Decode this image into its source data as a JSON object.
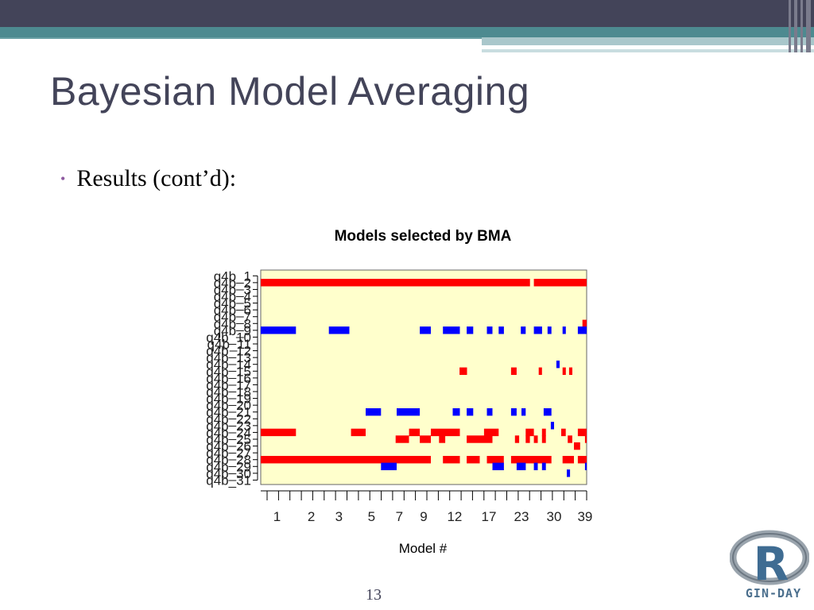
{
  "slide": {
    "title": "Bayesian Model Averaging",
    "bullet": "Results (cont’d):",
    "page_number": "13",
    "logo_text": "GIN-DAY",
    "accent_colors": {
      "header": "#434459",
      "teal": "#4d8a90",
      "bullet": "#8e5ba0"
    }
  },
  "chart_data": {
    "type": "heatmap",
    "title": "Models selected by BMA",
    "xlabel": "Model #",
    "ylabel": "",
    "background_color": "#ffffcc",
    "positive_color": "#ff0000",
    "negative_color": "#0000ff",
    "x_tick_labels": [
      "1",
      "2",
      "3",
      "5",
      "7",
      "9",
      "12",
      "17",
      "23",
      "30",
      "39"
    ],
    "y_labels": [
      "q4b_1",
      "q4b_2",
      "q4b_3",
      "q4b_4",
      "q4b_5",
      "q4b_6",
      "q4b_7",
      "q4b_8",
      "q4b_9",
      "q4b_10",
      "q4b_11",
      "q4b_12",
      "q4b_13",
      "q4b_14",
      "q4b_15",
      "q4b_16",
      "q4b_17",
      "q4b_18",
      "q4b_19",
      "q4b_20",
      "q4b_21",
      "q4b_22",
      "q4b_23",
      "q4b_24",
      "q4b_25",
      "q4b_26",
      "q4b_27",
      "q4b_28",
      "q4b_29",
      "q4b_30",
      "q4b_31"
    ],
    "cells": [
      {
        "variable": "q4b_2",
        "sign": "positive",
        "x_from": 0,
        "x_to": 0.826
      },
      {
        "variable": "q4b_2",
        "sign": "positive",
        "x_from": 0.838,
        "x_to": 1.0
      },
      {
        "variable": "q4b_8",
        "sign": "positive",
        "x_from": 0.987,
        "x_to": 1.0
      },
      {
        "variable": "q4b_9",
        "sign": "negative",
        "x_from": 0,
        "x_to": 0.108
      },
      {
        "variable": "q4b_9",
        "sign": "negative",
        "x_from": 0.209,
        "x_to": 0.272
      },
      {
        "variable": "q4b_9",
        "sign": "negative",
        "x_from": 0.488,
        "x_to": 0.522
      },
      {
        "variable": "q4b_9",
        "sign": "negative",
        "x_from": 0.559,
        "x_to": 0.611
      },
      {
        "variable": "q4b_9",
        "sign": "negative",
        "x_from": 0.632,
        "x_to": 0.652
      },
      {
        "variable": "q4b_9",
        "sign": "negative",
        "x_from": 0.694,
        "x_to": 0.711
      },
      {
        "variable": "q4b_9",
        "sign": "negative",
        "x_from": 0.73,
        "x_to": 0.746
      },
      {
        "variable": "q4b_9",
        "sign": "negative",
        "x_from": 0.798,
        "x_to": 0.813
      },
      {
        "variable": "q4b_9",
        "sign": "negative",
        "x_from": 0.838,
        "x_to": 0.863
      },
      {
        "variable": "q4b_9",
        "sign": "negative",
        "x_from": 0.88,
        "x_to": 0.892
      },
      {
        "variable": "q4b_9",
        "sign": "negative",
        "x_from": 0.926,
        "x_to": 0.936
      },
      {
        "variable": "q4b_9",
        "sign": "negative",
        "x_from": 0.973,
        "x_to": 1.0
      },
      {
        "variable": "q4b_14",
        "sign": "negative",
        "x_from": 0.907,
        "x_to": 0.917
      },
      {
        "variable": "q4b_15",
        "sign": "positive",
        "x_from": 0.61,
        "x_to": 0.633
      },
      {
        "variable": "q4b_15",
        "sign": "positive",
        "x_from": 0.768,
        "x_to": 0.785
      },
      {
        "variable": "q4b_15",
        "sign": "positive",
        "x_from": 0.853,
        "x_to": 0.863
      },
      {
        "variable": "q4b_15",
        "sign": "positive",
        "x_from": 0.926,
        "x_to": 0.936
      },
      {
        "variable": "q4b_15",
        "sign": "positive",
        "x_from": 0.946,
        "x_to": 0.956
      },
      {
        "variable": "q4b_21",
        "sign": "negative",
        "x_from": 0.322,
        "x_to": 0.369
      },
      {
        "variable": "q4b_21",
        "sign": "negative",
        "x_from": 0.417,
        "x_to": 0.488
      },
      {
        "variable": "q4b_21",
        "sign": "negative",
        "x_from": 0.589,
        "x_to": 0.611
      },
      {
        "variable": "q4b_21",
        "sign": "negative",
        "x_from": 0.632,
        "x_to": 0.652
      },
      {
        "variable": "q4b_21",
        "sign": "negative",
        "x_from": 0.694,
        "x_to": 0.711
      },
      {
        "variable": "q4b_21",
        "sign": "negative",
        "x_from": 0.768,
        "x_to": 0.785
      },
      {
        "variable": "q4b_21",
        "sign": "negative",
        "x_from": 0.8,
        "x_to": 0.813
      },
      {
        "variable": "q4b_21",
        "sign": "negative",
        "x_from": 0.868,
        "x_to": 0.892
      },
      {
        "variable": "q4b_23",
        "sign": "negative",
        "x_from": 0.89,
        "x_to": 0.9
      },
      {
        "variable": "q4b_24",
        "sign": "positive",
        "x_from": 0,
        "x_to": 0.108
      },
      {
        "variable": "q4b_24",
        "sign": "positive",
        "x_from": 0.277,
        "x_to": 0.322
      },
      {
        "variable": "q4b_24",
        "sign": "positive",
        "x_from": 0.455,
        "x_to": 0.488
      },
      {
        "variable": "q4b_24",
        "sign": "positive",
        "x_from": 0.522,
        "x_to": 0.611
      },
      {
        "variable": "q4b_24",
        "sign": "positive",
        "x_from": 0.685,
        "x_to": 0.73
      },
      {
        "variable": "q4b_24",
        "sign": "positive",
        "x_from": 0.813,
        "x_to": 0.838
      },
      {
        "variable": "q4b_24",
        "sign": "positive",
        "x_from": 0.863,
        "x_to": 0.875
      },
      {
        "variable": "q4b_24",
        "sign": "positive",
        "x_from": 0.922,
        "x_to": 0.936
      },
      {
        "variable": "q4b_24",
        "sign": "positive",
        "x_from": 0.973,
        "x_to": 1.0
      },
      {
        "variable": "q4b_25",
        "sign": "positive",
        "x_from": 0.414,
        "x_to": 0.455
      },
      {
        "variable": "q4b_25",
        "sign": "positive",
        "x_from": 0.488,
        "x_to": 0.522
      },
      {
        "variable": "q4b_25",
        "sign": "positive",
        "x_from": 0.547,
        "x_to": 0.566
      },
      {
        "variable": "q4b_25",
        "sign": "positive",
        "x_from": 0.632,
        "x_to": 0.711
      },
      {
        "variable": "q4b_25",
        "sign": "positive",
        "x_from": 0.78,
        "x_to": 0.793
      },
      {
        "variable": "q4b_25",
        "sign": "positive",
        "x_from": 0.813,
        "x_to": 0.826
      },
      {
        "variable": "q4b_25",
        "sign": "positive",
        "x_from": 0.838,
        "x_to": 0.85
      },
      {
        "variable": "q4b_25",
        "sign": "positive",
        "x_from": 0.863,
        "x_to": 0.875
      },
      {
        "variable": "q4b_25",
        "sign": "positive",
        "x_from": 0.942,
        "x_to": 0.956
      },
      {
        "variable": "q4b_25",
        "sign": "positive",
        "x_from": 0.995,
        "x_to": 1.0
      },
      {
        "variable": "q4b_26",
        "sign": "positive",
        "x_from": 0.961,
        "x_to": 0.98
      },
      {
        "variable": "q4b_28",
        "sign": "positive",
        "x_from": 0,
        "x_to": 0.522
      },
      {
        "variable": "q4b_28",
        "sign": "positive",
        "x_from": 0.559,
        "x_to": 0.611
      },
      {
        "variable": "q4b_28",
        "sign": "positive",
        "x_from": 0.632,
        "x_to": 0.672
      },
      {
        "variable": "q4b_28",
        "sign": "positive",
        "x_from": 0.694,
        "x_to": 0.746
      },
      {
        "variable": "q4b_28",
        "sign": "positive",
        "x_from": 0.768,
        "x_to": 0.892
      },
      {
        "variable": "q4b_28",
        "sign": "positive",
        "x_from": 0.926,
        "x_to": 0.961
      },
      {
        "variable": "q4b_28",
        "sign": "positive",
        "x_from": 0.973,
        "x_to": 1.0
      },
      {
        "variable": "q4b_29",
        "sign": "negative",
        "x_from": 0.369,
        "x_to": 0.417
      },
      {
        "variable": "q4b_29",
        "sign": "negative",
        "x_from": 0.711,
        "x_to": 0.746
      },
      {
        "variable": "q4b_29",
        "sign": "negative",
        "x_from": 0.785,
        "x_to": 0.813
      },
      {
        "variable": "q4b_29",
        "sign": "negative",
        "x_from": 0.838,
        "x_to": 0.85
      },
      {
        "variable": "q4b_29",
        "sign": "negative",
        "x_from": 0.863,
        "x_to": 0.875
      },
      {
        "variable": "q4b_29",
        "sign": "negative",
        "x_from": 0.995,
        "x_to": 1.0
      },
      {
        "variable": "q4b_30",
        "sign": "negative",
        "x_from": 0.939,
        "x_to": 0.949
      }
    ]
  }
}
